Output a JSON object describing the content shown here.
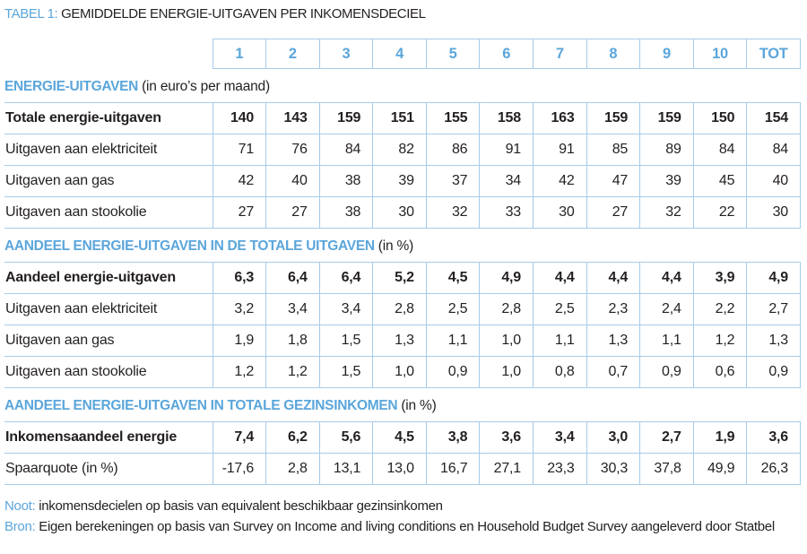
{
  "title": {
    "prefix": "TABEL 1:",
    "text": "GEMIDDELDE ENERGIE-UITGAVEN PER INKOMENSDECIEL"
  },
  "columns": [
    "1",
    "2",
    "3",
    "4",
    "5",
    "6",
    "7",
    "8",
    "9",
    "10",
    "TOT"
  ],
  "sections": [
    {
      "heading": "ENERGIE-UITGAVEN",
      "heading_note": "(in euro’s per maand)",
      "rows": [
        {
          "label": "Totale energie-uitgaven",
          "bold": true,
          "values": [
            "140",
            "143",
            "159",
            "151",
            "155",
            "158",
            "163",
            "159",
            "159",
            "150",
            "154"
          ]
        },
        {
          "label": "Uitgaven aan elektriciteit",
          "bold": false,
          "values": [
            "71",
            "76",
            "84",
            "82",
            "86",
            "91",
            "91",
            "85",
            "89",
            "84",
            "84"
          ]
        },
        {
          "label": "Uitgaven aan gas",
          "bold": false,
          "values": [
            "42",
            "40",
            "38",
            "39",
            "37",
            "34",
            "42",
            "47",
            "39",
            "45",
            "40"
          ]
        },
        {
          "label": "Uitgaven aan stookolie",
          "bold": false,
          "values": [
            "27",
            "27",
            "38",
            "30",
            "32",
            "33",
            "30",
            "27",
            "32",
            "22",
            "30"
          ]
        }
      ]
    },
    {
      "heading": "AANDEEL ENERGIE-UITGAVEN IN DE TOTALE UITGAVEN",
      "heading_note": "(in %)",
      "rows": [
        {
          "label": "Aandeel energie-uitgaven",
          "bold": true,
          "values": [
            "6,3",
            "6,4",
            "6,4",
            "5,2",
            "4,5",
            "4,9",
            "4,4",
            "4,4",
            "4,4",
            "3,9",
            "4,9"
          ]
        },
        {
          "label": "Uitgaven aan elektriciteit",
          "bold": false,
          "values": [
            "3,2",
            "3,4",
            "3,4",
            "2,8",
            "2,5",
            "2,8",
            "2,5",
            "2,3",
            "2,4",
            "2,2",
            "2,7"
          ]
        },
        {
          "label": "Uitgaven aan gas",
          "bold": false,
          "values": [
            "1,9",
            "1,8",
            "1,5",
            "1,3",
            "1,1",
            "1,0",
            "1,1",
            "1,3",
            "1,1",
            "1,2",
            "1,3"
          ]
        },
        {
          "label": "Uitgaven aan stookolie",
          "bold": false,
          "values": [
            "1,2",
            "1,2",
            "1,5",
            "1,0",
            "0,9",
            "1,0",
            "0,8",
            "0,7",
            "0,9",
            "0,6",
            "0,9"
          ]
        }
      ]
    },
    {
      "heading": "AANDEEL ENERGIE-UITGAVEN IN TOTALE GEZINSINKOMEN",
      "heading_note": "(in %)",
      "rows": [
        {
          "label": "Inkomensaandeel energie",
          "bold": true,
          "values": [
            "7,4",
            "6,2",
            "5,6",
            "4,5",
            "3,8",
            "3,6",
            "3,4",
            "3,0",
            "2,7",
            "1,9",
            "3,6"
          ]
        },
        {
          "label": "Spaarquote (in %)",
          "bold": false,
          "values": [
            "-17,6",
            "2,8",
            "13,1",
            "13,0",
            "16,7",
            "27,1",
            "23,3",
            "30,3",
            "37,8",
            "49,9",
            "26,3"
          ]
        }
      ]
    }
  ],
  "notes": [
    {
      "label": "Noot:",
      "text": "inkomensdecielen op basis van equivalent beschikbaar gezinsinkomen"
    },
    {
      "label": "Bron:",
      "text": "Eigen berekeningen op basis van Survey on Income and living conditions en Household Budget Survey aangeleverd door Statbel"
    }
  ],
  "colors": {
    "accent_blue": "#5ba6db",
    "border_blue": "#a7cbe9",
    "text_dark": "#231f20"
  }
}
